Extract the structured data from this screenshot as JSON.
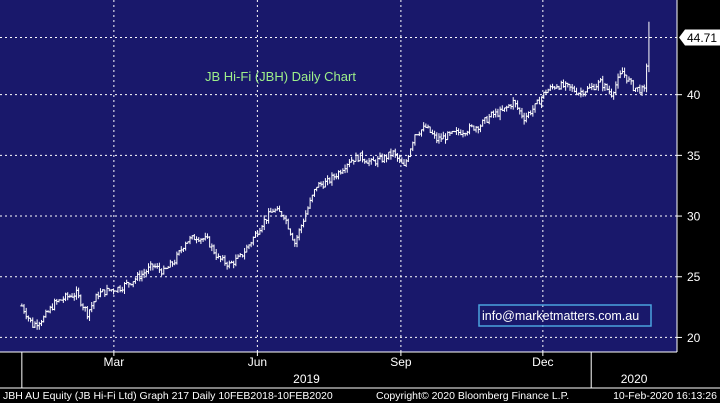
{
  "colors": {
    "plot_bg": "#19186b",
    "outer_bg": "#000000",
    "grid": "#ffffff",
    "bars": "#ffffff",
    "title": "#9ef08a",
    "email_border": "#4aa3df",
    "last_value_bg": "#ffffff"
  },
  "footer": {
    "security": "JBH AU Equity (JB Hi-Fi Ltd) Graph 217  Daily 10FEB2018-10FEB2020",
    "copyright": "Copyright© 2020 Bloomberg Finance L.P.",
    "timestamp": "10-Feb-2020 16:13:26"
  },
  "chart_data": {
    "type": "ohlc",
    "title": "JB Hi-Fi (JBH) Daily Chart",
    "annotation": "info@marketmatters.com.au",
    "ylim": [
      18.8,
      47.8
    ],
    "y_ticks": [
      20,
      25,
      30,
      35,
      40
    ],
    "y_tick_labels": [
      "20",
      "25",
      "30",
      "35",
      "40"
    ],
    "last_value_label": "44.71",
    "last_value": 44.71,
    "x_tick_labels": [
      "Mar",
      "Jun",
      "Sep",
      "Dec"
    ],
    "x_tick_dates": [
      "2019-03-01",
      "2019-06-01",
      "2019-09-01",
      "2019-12-01"
    ],
    "year_labels": [
      "2019",
      "2020"
    ],
    "grid": true,
    "series": [
      {
        "name": "JBH",
        "dates": [
          "2019-01-01",
          "2019-01-08",
          "2019-01-15",
          "2019-01-22",
          "2019-01-29",
          "2019-02-05",
          "2019-02-12",
          "2019-02-19",
          "2019-02-26",
          "2019-03-05",
          "2019-03-12",
          "2019-03-19",
          "2019-03-26",
          "2019-04-02",
          "2019-04-09",
          "2019-04-16",
          "2019-04-23",
          "2019-04-30",
          "2019-05-07",
          "2019-05-14",
          "2019-05-21",
          "2019-05-28",
          "2019-06-04",
          "2019-06-11",
          "2019-06-18",
          "2019-06-25",
          "2019-07-02",
          "2019-07-09",
          "2019-07-16",
          "2019-07-23",
          "2019-07-30",
          "2019-08-06",
          "2019-08-13",
          "2019-08-20",
          "2019-08-27",
          "2019-09-03",
          "2019-09-10",
          "2019-09-17",
          "2019-09-24",
          "2019-10-01",
          "2019-10-08",
          "2019-10-15",
          "2019-10-22",
          "2019-10-29",
          "2019-11-05",
          "2019-11-12",
          "2019-11-19",
          "2019-11-26",
          "2019-12-03",
          "2019-12-10",
          "2019-12-17",
          "2019-12-24",
          "2019-12-31",
          "2020-01-07",
          "2020-01-14",
          "2020-01-21",
          "2020-01-28",
          "2020-02-04",
          "2020-02-07"
        ],
        "close": [
          22.6,
          21.0,
          21.6,
          22.8,
          23.3,
          23.6,
          22.0,
          23.6,
          23.9,
          24.1,
          24.6,
          25.2,
          25.9,
          25.4,
          26.3,
          27.9,
          28.3,
          28.0,
          26.5,
          26.0,
          26.6,
          27.9,
          29.4,
          30.5,
          30.1,
          27.8,
          30.2,
          32.5,
          32.8,
          33.6,
          34.6,
          34.9,
          34.4,
          34.7,
          35.2,
          34.0,
          36.8,
          37.3,
          36.3,
          36.6,
          36.9,
          37.2,
          37.5,
          38.3,
          38.6,
          39.4,
          38.1,
          39.0,
          40.3,
          40.8,
          40.6,
          40.2,
          40.5,
          41.0,
          40.1,
          41.9,
          40.6,
          40.3,
          44.71
        ]
      }
    ]
  }
}
